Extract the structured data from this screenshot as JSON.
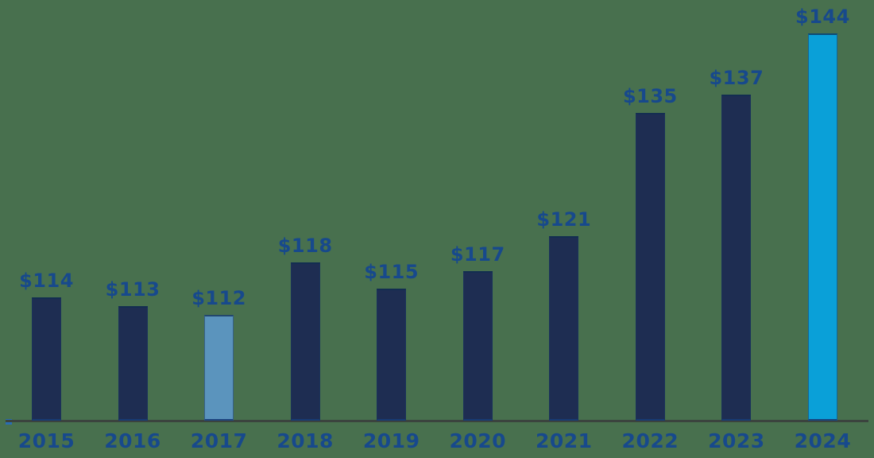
{
  "chart_data": {
    "type": "bar",
    "categories": [
      "2015",
      "2016",
      "2017",
      "2018",
      "2019",
      "2020",
      "2021",
      "2022",
      "2023",
      "2024"
    ],
    "values": [
      114,
      113,
      112,
      118,
      115,
      117,
      121,
      135,
      137,
      144
    ],
    "value_labels": [
      "$114",
      "$113",
      "$112",
      "$118",
      "$115",
      "$117",
      "$121",
      "$135",
      "$137",
      "$144"
    ],
    "bar_colors": [
      "#1e2d52",
      "#1e2d52",
      "#5b94bd",
      "#1e2d52",
      "#1e2d52",
      "#1e2d52",
      "#1e2d52",
      "#1e2d52",
      "#1e2d52",
      "#0aa0d8"
    ],
    "xlabel": "",
    "ylabel": "",
    "ylim": [
      100,
      145
    ],
    "grid": false,
    "legend": null
  },
  "colors": {
    "background": "#48704e",
    "bar_default": "#1e2d52",
    "bar_2017_highlight": "#5b94bd",
    "bar_2024_highlight": "#0aa0d8",
    "label_text": "#17498c",
    "axis_line": "#3b433e",
    "axis_stub": "#2a6db3"
  }
}
